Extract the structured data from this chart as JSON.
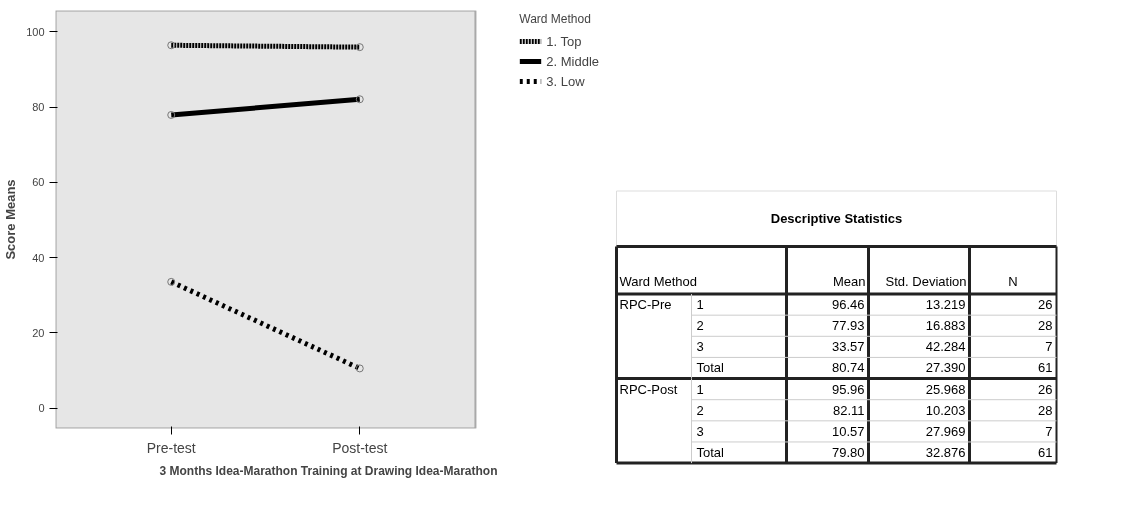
{
  "chart_data": [
    {
      "type": "line",
      "categories": [
        "Pre-test",
        "Post-test"
      ],
      "xlabel": "3 Months Idea-Marathon Training at Drawing Idea-Marathon",
      "ylabel": "Score Means",
      "legend_title": "Ward Method",
      "legend": "right",
      "marker": "circle",
      "grid": false,
      "ylim": [
        -5.4,
        105.7
      ],
      "yticks": [
        0,
        20,
        40,
        60,
        80,
        100
      ],
      "series": [
        {
          "name": "1. Top",
          "color": "#000000",
          "line_style": "dotted",
          "values": [
            96.46,
            95.96
          ]
        },
        {
          "name": "2. Middle",
          "color": "#000000",
          "line_style": "solid",
          "values": [
            77.93,
            82.11
          ]
        },
        {
          "name": "3. Low",
          "color": "#000000",
          "line_style": "dashed",
          "values": [
            33.57,
            10.57
          ]
        }
      ]
    },
    {
      "type": "other",
      "title": "Descriptive Statistics",
      "categories": [
        "Ward Method",
        null,
        "Mean",
        "Std. Deviation",
        "N"
      ],
      "y_categories": [
        "RPC-Pre",
        "RPC-Post"
      ],
      "y2_categories": [
        "1",
        "2",
        "3",
        "Total"
      ],
      "cell_labels": [
        [
          "96.46",
          "13.219",
          "26"
        ],
        [
          "77.93",
          "16.883",
          "28"
        ],
        [
          "33.57",
          "42.284",
          "7"
        ],
        [
          "80.74",
          "27.390",
          "61"
        ],
        [
          "95.96",
          "25.968",
          "26"
        ],
        [
          "82.11",
          "10.203",
          "28"
        ],
        [
          "10.57",
          "27.969",
          "7"
        ],
        [
          "79.80",
          "32.876",
          "61"
        ]
      ]
    }
  ]
}
